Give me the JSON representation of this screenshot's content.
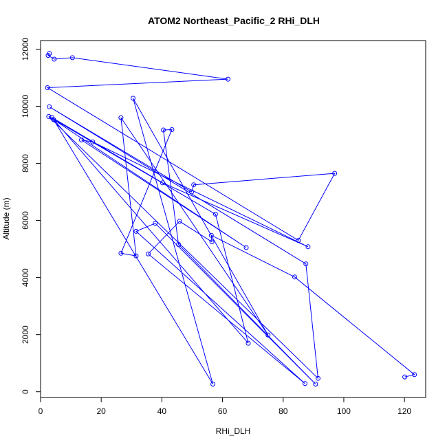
{
  "chart_data": {
    "type": "line",
    "title": "ATOM2 Northeast_Pacific_2 RHi_DLH",
    "xlabel": "RHi_DLH",
    "ylabel": "Altitude (m)",
    "xlim": [
      0,
      127
    ],
    "ylim": [
      -200,
      12300
    ],
    "xticks": [
      0,
      20,
      40,
      60,
      80,
      100,
      120
    ],
    "yticks": [
      0,
      2000,
      4000,
      6000,
      8000,
      10000,
      12000
    ],
    "color": "#0000ff",
    "series": [
      {
        "points": [
          [
            2.9,
            11850
          ],
          [
            2.5,
            11780
          ],
          [
            4.5,
            11650
          ],
          [
            10.5,
            11700
          ],
          [
            61.8,
            10950
          ],
          [
            2.3,
            10650
          ],
          [
            85,
            5300
          ],
          [
            97,
            7650
          ],
          [
            50.5,
            7250
          ],
          [
            49.8,
            7000
          ],
          [
            2.9,
            9980
          ],
          [
            87.5,
            4480
          ],
          [
            91.5,
            470
          ],
          [
            2.7,
            9640
          ],
          [
            57.7,
            6220
          ],
          [
            68.5,
            1700
          ],
          [
            3.7,
            9610
          ],
          [
            40.2,
            7320
          ],
          [
            88.2,
            5080
          ],
          [
            17.2,
            8750
          ],
          [
            13.5,
            8820
          ],
          [
            67.8,
            5050
          ],
          [
            4.3,
            9530
          ],
          [
            56.8,
            270
          ],
          [
            30.5,
            10280
          ],
          [
            75,
            1990
          ],
          [
            26.5,
            9600
          ],
          [
            31.5,
            4760
          ],
          [
            26.5,
            4850
          ],
          [
            43.3,
            9180
          ],
          [
            40.5,
            9170
          ],
          [
            45.5,
            5160
          ],
          [
            90.7,
            270
          ],
          [
            37.8,
            5900
          ],
          [
            31.5,
            5620
          ],
          [
            87.2,
            290
          ],
          [
            35.5,
            4830
          ],
          [
            45.8,
            5970
          ],
          [
            56.5,
            5250
          ],
          [
            56.3,
            5480
          ],
          [
            83.8,
            4020
          ],
          [
            123.3,
            600
          ],
          [
            120.1,
            520
          ]
        ]
      }
    ]
  }
}
